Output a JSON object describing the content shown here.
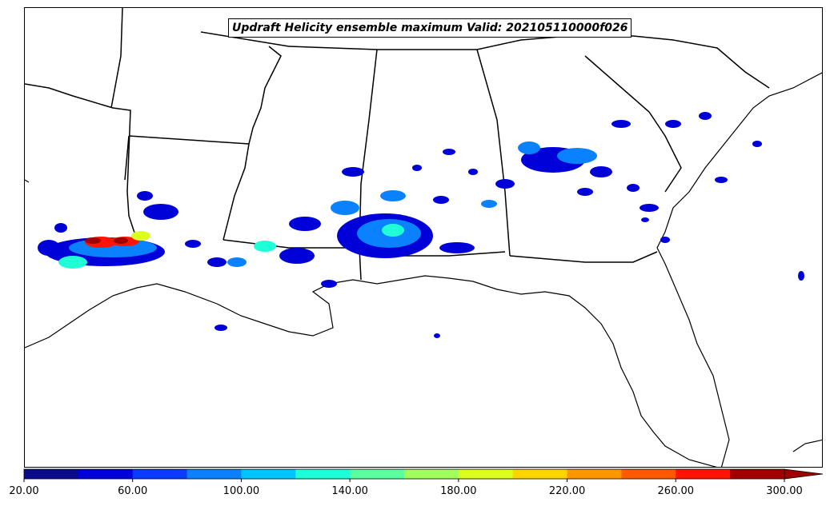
{
  "map": {
    "title": "Updraft Helicity ensemble maximum Valid: 202105110000f026"
  },
  "colorbar": {
    "colors": [
      "#0a0a8c",
      "#0000d8",
      "#0a3cff",
      "#0a82ff",
      "#00c4ff",
      "#1effd8",
      "#5affa0",
      "#a0ff5a",
      "#dcff1e",
      "#ffd400",
      "#ff9600",
      "#ff5a00",
      "#ff1400",
      "#a00000"
    ],
    "tick_labels": [
      "20.00",
      "60.00",
      "100.00",
      "140.00",
      "180.00",
      "220.00",
      "260.00",
      "300.00"
    ],
    "extend": "max"
  }
}
